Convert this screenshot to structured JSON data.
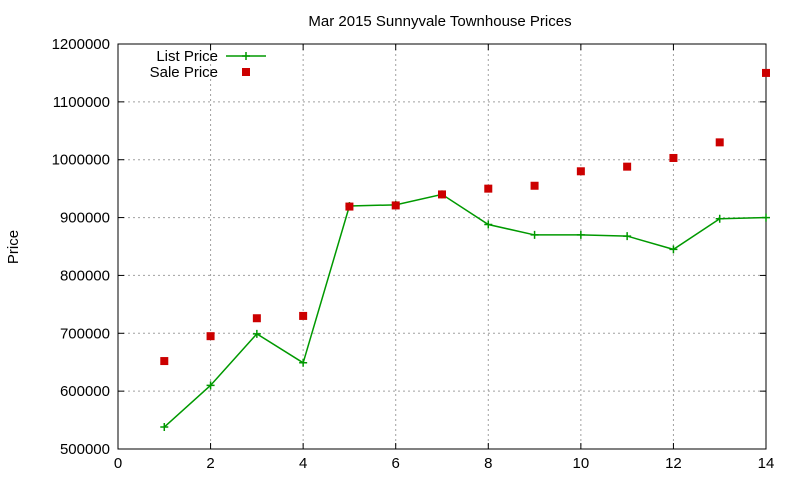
{
  "chart_data": {
    "type": "line",
    "title": "Mar 2015 Sunnyvale Townhouse Prices",
    "xlabel": "",
    "ylabel": "Price",
    "xlim": [
      0,
      14
    ],
    "ylim": [
      500000,
      1200000
    ],
    "xticks": [
      0,
      2,
      4,
      6,
      8,
      10,
      12,
      14
    ],
    "yticks": [
      500000,
      600000,
      700000,
      800000,
      900000,
      1000000,
      1100000,
      1200000
    ],
    "grid": true,
    "legend_position": "top-left",
    "series": [
      {
        "name": "List Price",
        "style": "line-plus",
        "color": "#009900",
        "x": [
          1,
          2,
          3,
          4,
          5,
          6,
          7,
          8,
          9,
          10,
          11,
          12,
          13,
          14
        ],
        "y": [
          538000,
          610000,
          699000,
          649000,
          920000,
          922000,
          940000,
          888000,
          870000,
          870000,
          868000,
          845000,
          898000,
          900000
        ]
      },
      {
        "name": "Sale Price",
        "style": "square-points",
        "color": "#cc0000",
        "x": [
          1,
          2,
          3,
          4,
          5,
          6,
          7,
          8,
          9,
          10,
          11,
          12,
          13,
          14
        ],
        "y": [
          652000,
          695000,
          726000,
          730000,
          919000,
          921000,
          940000,
          950000,
          955000,
          980000,
          988000,
          1003000,
          1030000,
          1150000
        ]
      }
    ]
  }
}
